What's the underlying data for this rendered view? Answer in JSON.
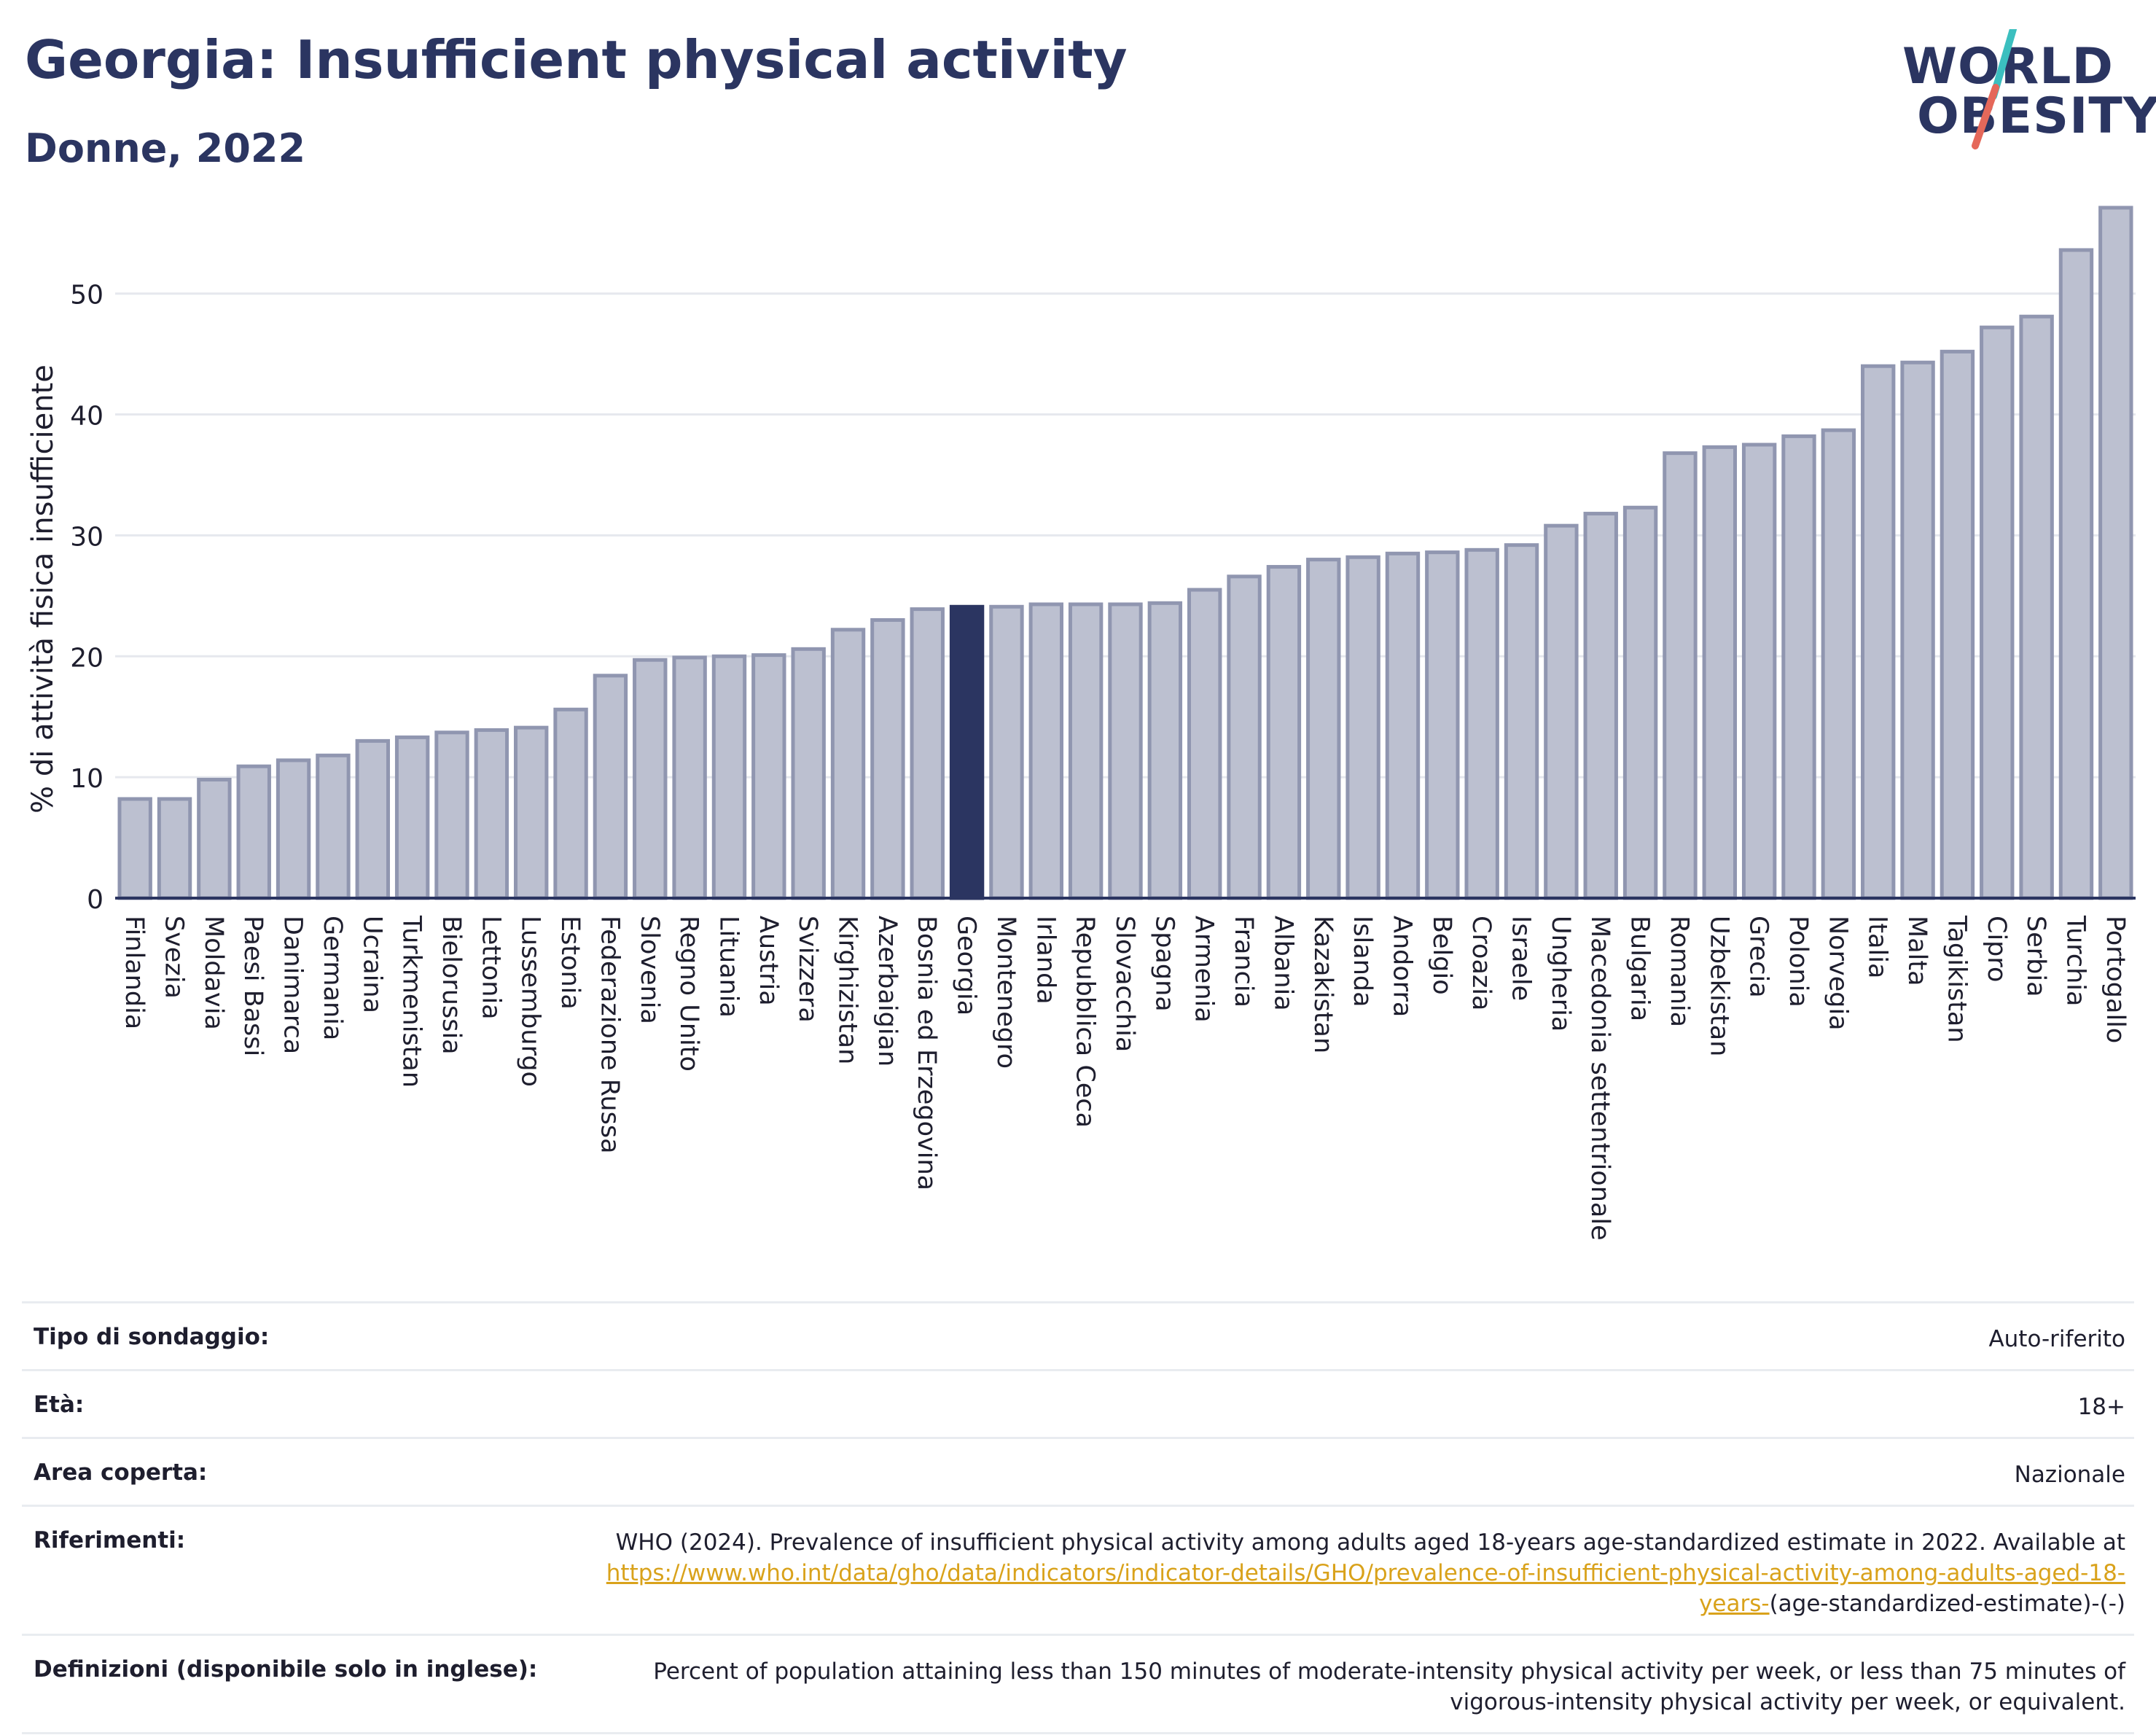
{
  "header": {
    "title": "Georgia: Insufficient physical activity",
    "subtitle": "Donne, 2022",
    "logo_line1": "WORLD",
    "logo_line2": "OBESITY"
  },
  "colors": {
    "title": "#2b3561",
    "bar": "#bcc0d0",
    "bar_stroke": "#9096b0",
    "highlight": "#2b3561",
    "grid": "#e6e8ee",
    "link": "#d9a21b",
    "logo_teal": "#3bbfbf",
    "logo_coral": "#e5685a"
  },
  "chart_data": {
    "type": "bar",
    "title": "Georgia: Insufficient physical activity",
    "subtitle": "Donne, 2022",
    "xlabel": "",
    "ylabel": "% di attività fisica insufficiente",
    "ylim": [
      0,
      58
    ],
    "yticks": [
      0,
      10,
      20,
      30,
      40,
      50
    ],
    "grid": true,
    "highlight_category": "Georgia",
    "categories": [
      "Finlandia",
      "Svezia",
      "Moldavia",
      "Paesi Bassi",
      "Danimarca",
      "Germania",
      "Ucraina",
      "Turkmenistan",
      "Bielorussia",
      "Lettonia",
      "Lussemburgo",
      "Estonia",
      "Federazione Russa",
      "Slovenia",
      "Regno Unito",
      "Lituania",
      "Austria",
      "Svizzera",
      "Kirghizistan",
      "Azerbaigian",
      "Bosnia ed Erzegovina",
      "Georgia",
      "Montenegro",
      "Irlanda",
      "Repubblica Ceca",
      "Slovacchia",
      "Spagna",
      "Armenia",
      "Francia",
      "Albania",
      "Kazakistan",
      "Islanda",
      "Andorra",
      "Belgio",
      "Croazia",
      "Israele",
      "Ungheria",
      "Macedonia settentrionale",
      "Bulgaria",
      "Romania",
      "Uzbekistan",
      "Grecia",
      "Polonia",
      "Norvegia",
      "Italia",
      "Malta",
      "Tagikistan",
      "Cipro",
      "Serbia",
      "Turchia",
      "Portogallo"
    ],
    "values": [
      8.2,
      8.2,
      9.8,
      10.9,
      11.4,
      11.8,
      13.0,
      13.3,
      13.7,
      13.9,
      14.1,
      15.6,
      18.4,
      19.7,
      19.9,
      20.0,
      20.1,
      20.6,
      22.2,
      23.0,
      23.9,
      24.1,
      24.1,
      24.3,
      24.3,
      24.3,
      24.4,
      25.5,
      26.6,
      27.4,
      28.0,
      28.2,
      28.5,
      28.6,
      28.8,
      29.2,
      30.8,
      31.8,
      32.3,
      36.8,
      37.3,
      37.5,
      38.2,
      38.7,
      44.0,
      44.3,
      45.2,
      47.2,
      48.1,
      53.6,
      57.1
    ]
  },
  "meta": {
    "rows": [
      {
        "label": "Tipo di sondaggio:",
        "value": "Auto-riferito"
      },
      {
        "label": "Età:",
        "value": "18+"
      },
      {
        "label": "Area coperta:",
        "value": "Nazionale"
      },
      {
        "label": "Riferimenti:",
        "value": "WHO (2024). Prevalence of insufficient physical activity among adults aged 18-years age-standardized estimate in 2022. Available at ",
        "link": "https://www.who.int/data/gho/data/indicators/indicator-details/GHO/prevalence-of-insufficient-physical-activity-among-adults-aged-18-years-",
        "suffix": "(age-standardized-estimate)-(-)"
      },
      {
        "label": "Definizioni (disponibile solo in inglese):",
        "value": "Percent of population attaining less than 150 minutes of moderate-intensity physical activity per week, or less than 75 minutes of vigorous-intensity physical activity per week, or equivalent."
      }
    ]
  }
}
